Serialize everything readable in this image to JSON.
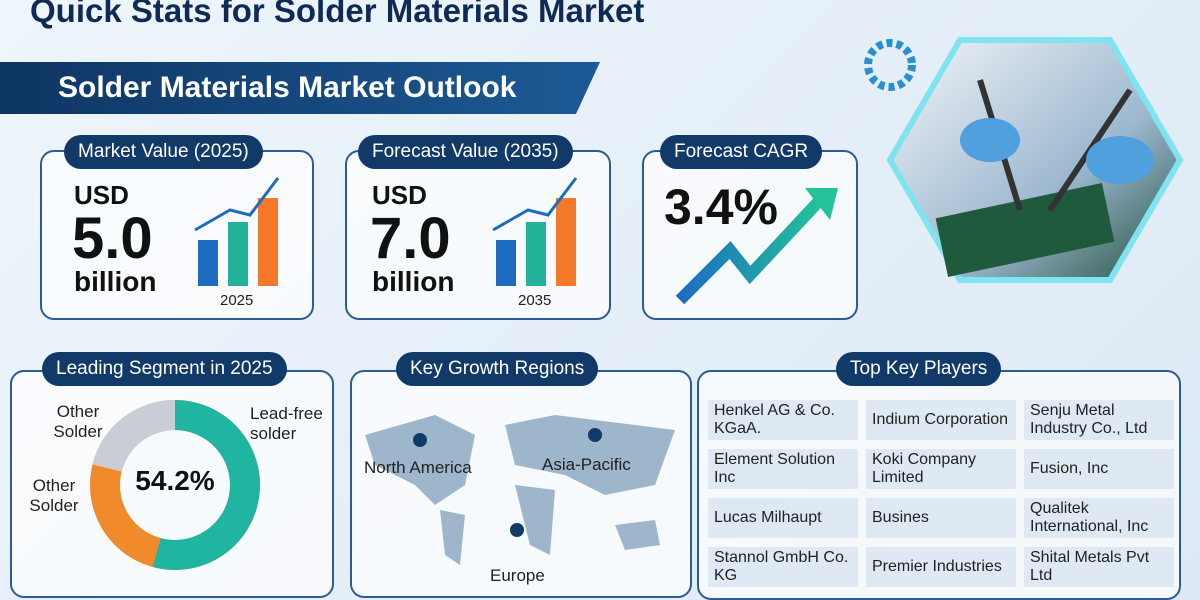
{
  "title": "Quick Stats for Solder Materials Market",
  "banner": "Solder Materials Market Outlook",
  "cards": [
    {
      "title": "Market Value (2025)",
      "currency": "USD",
      "value": "5.0",
      "unit": "billion",
      "year": "2025"
    },
    {
      "title": "Forecast Value (2035)",
      "currency": "USD",
      "value": "7.0",
      "unit": "billion",
      "year": "2035"
    },
    {
      "title": "Forecast CAGR",
      "value": "3.4%"
    }
  ],
  "segment": {
    "title": "Leading Segment in 2025",
    "share": 54.2,
    "share_label": "54.2%",
    "labels": [
      "Other Solder",
      "Lead-free solder",
      "Other Solder"
    ]
  },
  "regions": {
    "title": "Key Growth Regions",
    "items": [
      "North America",
      "Asia-Pacific",
      "Europe"
    ]
  },
  "players": {
    "title": "Top Key Players",
    "items": [
      "Henkel AG & Co. KGaA.",
      "Indium Corporation",
      "Senju Metal Industry Co., Ltd",
      "Element Solution Inc",
      "Koki Company Limited",
      "Fusion, Inc",
      "Lucas Milhaupt",
      "Busines",
      "Qualitek International, Inc",
      "Stannol GmbH Co. KG",
      "Premier Industries",
      "Shital Metals Pvt Ltd"
    ]
  }
}
